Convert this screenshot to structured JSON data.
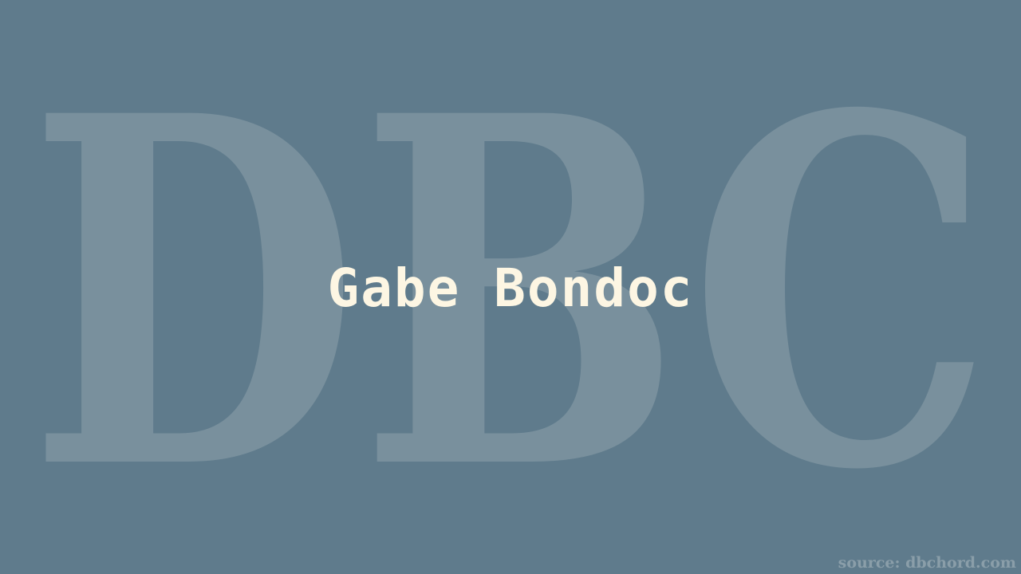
{
  "background_color": "#5f7b8c",
  "watermark": {
    "text": "DBC",
    "color": "#8a9ea9",
    "opacity": 0.6
  },
  "title": {
    "text": "Gabe Bondoc",
    "color": "#fdf6e3"
  },
  "source": {
    "text": "source: dbchord.com",
    "color": "#8a9ea9"
  }
}
